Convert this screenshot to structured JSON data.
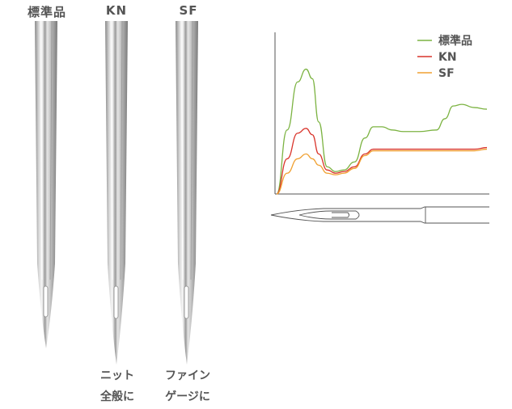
{
  "needles": [
    {
      "label": "標準品"
    },
    {
      "label": "KN"
    },
    {
      "label": "SF"
    }
  ],
  "captions": {
    "kn": [
      "ニット",
      "全般に"
    ],
    "sf": [
      "ファイン",
      "ゲージに"
    ]
  },
  "chart_data": {
    "type": "line",
    "title": "",
    "xlabel": "",
    "ylabel": "",
    "legend_position": "top-right",
    "grid": false,
    "x": [
      0,
      0.05,
      0.1,
      0.14,
      0.17,
      0.2,
      0.24,
      0.28,
      0.32,
      0.37,
      0.42,
      0.46,
      0.5,
      0.55,
      0.6,
      0.68,
      0.76,
      0.8,
      0.84,
      0.88,
      0.94,
      1.0
    ],
    "xlim": [
      0,
      1
    ],
    "ylim": [
      0,
      1
    ],
    "series": [
      {
        "name": "標準品",
        "color": "#7cb342",
        "values": [
          0,
          0.4,
          0.7,
          0.78,
          0.72,
          0.45,
          0.17,
          0.14,
          0.15,
          0.2,
          0.35,
          0.42,
          0.42,
          0.4,
          0.39,
          0.39,
          0.4,
          0.47,
          0.55,
          0.56,
          0.54,
          0.53
        ]
      },
      {
        "name": "KN",
        "color": "#d9342b",
        "values": [
          0,
          0.22,
          0.38,
          0.41,
          0.37,
          0.25,
          0.15,
          0.13,
          0.14,
          0.17,
          0.25,
          0.28,
          0.28,
          0.28,
          0.28,
          0.28,
          0.28,
          0.28,
          0.28,
          0.28,
          0.28,
          0.29
        ]
      },
      {
        "name": "SF",
        "color": "#f0a030",
        "values": [
          0,
          0.13,
          0.22,
          0.25,
          0.22,
          0.18,
          0.13,
          0.12,
          0.13,
          0.16,
          0.24,
          0.27,
          0.27,
          0.27,
          0.27,
          0.27,
          0.27,
          0.27,
          0.27,
          0.27,
          0.27,
          0.28
        ]
      }
    ]
  }
}
